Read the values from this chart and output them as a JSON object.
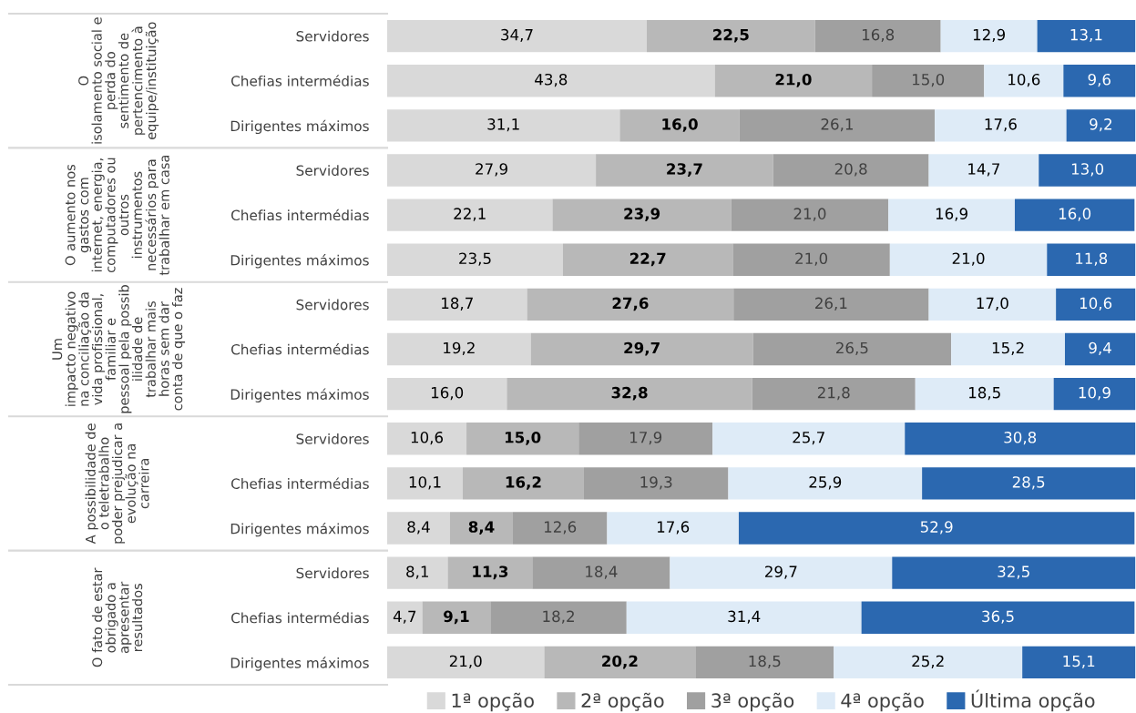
{
  "chart_data": {
    "type": "bar",
    "orientation": "horizontal",
    "stacked": true,
    "grid": false,
    "legend": "bottom",
    "categories": [
      "Servidores",
      "Chefias intermédias",
      "Dirigentes máximos",
      "Servidores",
      "Chefias intermédias",
      "Dirigentes máximos",
      "Servidores",
      "Chefias intermédias",
      "Dirigentes máximos",
      "Servidores",
      "Chefias intermédias",
      "Dirigentes máximos",
      "Servidores",
      "Chefias intermédias",
      "Dirigentes máximos"
    ],
    "annotations": [
      "O\nisolamento social e\nperda do\nsentimento de\npertencimento à\nequipe/instituição",
      "O aumento nos\ngastos com\ninternet, energia,\ncomputadores ou\noutros\ninstrumentos\nnecessários para\ntrabalhar em casa",
      "Um\nimpacto negativo\nna conciliação da\nvida profissional,\nfamiliar e\npessoal pela possib\nilidade de\ntrabalhar mais\nhoras sem dar\nconta de que o faz",
      "A possibilidade de\no teletrabalho\npoder prejudicar a\nevolução na\ncarreira",
      "O fato de estar\nobrigado a\napresentar\nresultados"
    ],
    "series": [
      {
        "name": "1ª opção",
        "color": "#d9d9d9",
        "values": [
          34.7,
          43.8,
          31.1,
          27.9,
          22.1,
          23.5,
          18.7,
          19.2,
          16.0,
          10.6,
          10.1,
          8.4,
          8.1,
          4.7,
          21.0
        ],
        "value_labels": [
          "34,7",
          "43,8",
          "31,1",
          "27,9",
          "22,1",
          "23,5",
          "18,7",
          "19,2",
          "16,0",
          "10,6",
          "10,1",
          "8,4",
          "8,1",
          "4,7",
          "21,0"
        ]
      },
      {
        "name": "2ª opção",
        "color": "#b8b8b8",
        "values": [
          22.5,
          21.0,
          16.0,
          23.7,
          23.9,
          22.7,
          27.6,
          29.7,
          32.8,
          15.0,
          16.2,
          8.4,
          11.3,
          9.1,
          20.2
        ],
        "value_labels": [
          "22,5",
          "21,0",
          "16,0",
          "23,7",
          "23,9",
          "22,7",
          "27,6",
          "29,7",
          "32,8",
          "15,0",
          "16,2",
          "8,4",
          "11,3",
          "9,1",
          "20,2"
        ]
      },
      {
        "name": "3ª opção",
        "color": "#a0a0a0",
        "values": [
          16.8,
          15.0,
          26.1,
          20.8,
          21.0,
          21.0,
          26.1,
          26.5,
          21.8,
          17.9,
          19.3,
          12.6,
          18.4,
          18.2,
          18.5
        ],
        "value_labels": [
          "16,8",
          "15,0",
          "26,1",
          "20,8",
          "21,0",
          "21,0",
          "26,1",
          "26,5",
          "21,8",
          "17,9",
          "19,3",
          "12,6",
          "18,4",
          "18,2",
          "18,5"
        ]
      },
      {
        "name": "4ª opção",
        "color": "#deebf7",
        "values": [
          12.9,
          10.6,
          17.6,
          14.7,
          16.9,
          21.0,
          17.0,
          15.2,
          18.5,
          25.7,
          25.9,
          17.6,
          29.7,
          31.4,
          25.2
        ],
        "value_labels": [
          "12,9",
          "10,6",
          "17,6",
          "14,7",
          "16,9",
          "21,0",
          "17,0",
          "15,2",
          "18,5",
          "25,7",
          "25,9",
          "17,6",
          "29,7",
          "31,4",
          "25,2"
        ]
      },
      {
        "name": "Última opção",
        "color": "#2b68b0",
        "values": [
          13.1,
          9.6,
          9.2,
          13.0,
          16.0,
          11.8,
          10.6,
          9.4,
          10.9,
          30.8,
          28.5,
          52.9,
          32.5,
          36.5,
          15.1
        ],
        "value_labels": [
          "13,1",
          "9,6",
          "9,2",
          "13,0",
          "16,0",
          "11,8",
          "10,6",
          "9,4",
          "10,9",
          "30,8",
          "28,5",
          "52,9",
          "32,5",
          "36,5",
          "15,1"
        ]
      }
    ]
  }
}
